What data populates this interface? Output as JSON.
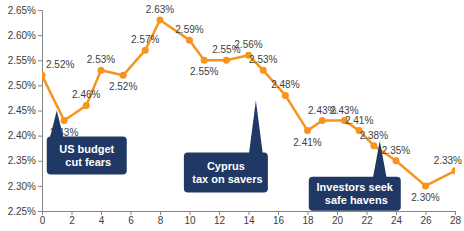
{
  "chart_data": {
    "type": "line",
    "x": [
      0,
      1.5,
      3,
      4,
      5.5,
      7,
      8,
      10,
      11,
      12.5,
      14,
      15,
      16.5,
      18,
      19,
      20.5,
      21.5,
      22.5,
      24,
      26,
      28
    ],
    "values": [
      2.52,
      2.43,
      2.46,
      2.53,
      2.52,
      2.57,
      2.63,
      2.59,
      2.55,
      2.55,
      2.56,
      2.53,
      2.48,
      2.41,
      2.43,
      2.43,
      2.41,
      2.38,
      2.35,
      2.3,
      2.33
    ],
    "value_labels": [
      "2.52%",
      "2.43%",
      "2.46%",
      "2.53%",
      "2.52%",
      "2.57%",
      "2.63%",
      "2.59%",
      "2.55%",
      "2.55%",
      "2.56%",
      "2.53%",
      "2.48%",
      "2.41%",
      "2.43%",
      "2.43%",
      "2.41%",
      "2.38%",
      "2.35%",
      "2.30%",
      "2.33%"
    ],
    "color": "#f7941d",
    "marker": "circle",
    "line_style": "solid",
    "data_labels": true,
    "grid": false,
    "xlim": [
      0,
      28
    ],
    "xticks": [
      0,
      2,
      4,
      6,
      8,
      10,
      12,
      14,
      16,
      18,
      20,
      22,
      24,
      26,
      28
    ],
    "ylim": [
      2.25,
      2.65
    ],
    "yticks": [
      {
        "value": 2.25,
        "label": "2.25%"
      },
      {
        "value": 2.3,
        "label": "2.30%"
      },
      {
        "value": 2.35,
        "label": "2.35%"
      },
      {
        "value": 2.4,
        "label": "2.40%"
      },
      {
        "value": 2.45,
        "label": "2.45%"
      },
      {
        "value": 2.5,
        "label": "2.50%"
      },
      {
        "value": 2.55,
        "label": "2.55%"
      },
      {
        "value": 2.6,
        "label": "2.60%"
      },
      {
        "value": 2.65,
        "label": "2.65%"
      }
    ],
    "annotations": [
      {
        "text": "US budget cut fears",
        "x": 1,
        "y": 2.45
      },
      {
        "text": "Cyprus tax on savers",
        "x": 14.5,
        "y": 2.47
      },
      {
        "text": "Investors seek safe havens",
        "x": 22.9,
        "y": 2.39
      }
    ]
  }
}
